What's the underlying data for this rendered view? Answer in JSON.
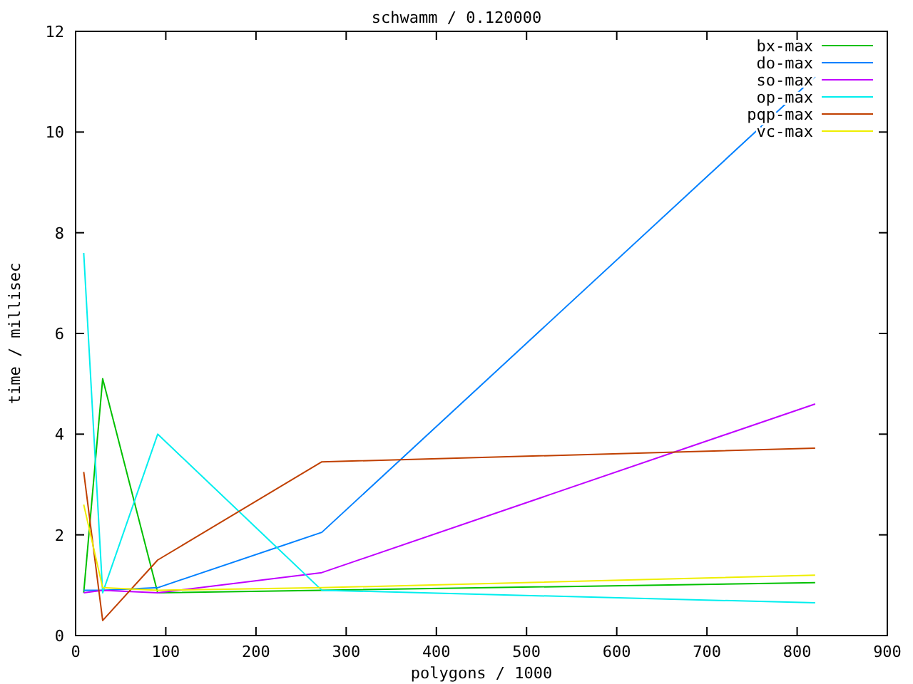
{
  "chart_data": {
    "type": "line",
    "title": "schwamm / 0.120000",
    "xlabel": "polygons / 1000",
    "ylabel": "time / millisec",
    "x": [
      9,
      30,
      91,
      273,
      820
    ],
    "series": [
      {
        "name": "bx-max",
        "color": "#00c000",
        "values": [
          0.85,
          5.1,
          0.85,
          0.9,
          1.05
        ]
      },
      {
        "name": "do-max",
        "color": "#0080ff",
        "values": [
          0.9,
          0.9,
          0.95,
          2.05,
          11.1
        ]
      },
      {
        "name": "so-max",
        "color": "#c000ff",
        "values": [
          0.85,
          0.9,
          0.85,
          1.25,
          4.6
        ]
      },
      {
        "name": "op-max",
        "color": "#00eeee",
        "values": [
          7.6,
          0.85,
          4.0,
          0.9,
          0.65
        ]
      },
      {
        "name": "pqp-max",
        "color": "#c04000",
        "values": [
          3.25,
          0.3,
          1.5,
          3.45,
          3.72
        ]
      },
      {
        "name": "vc-max",
        "color": "#eeee00",
        "values": [
          2.6,
          0.95,
          0.9,
          0.95,
          1.2
        ]
      }
    ],
    "xlim": [
      0,
      900
    ],
    "xticks": [
      0,
      100,
      200,
      300,
      400,
      500,
      600,
      700,
      800,
      900
    ],
    "ylim": [
      0,
      12
    ],
    "yticks": [
      0,
      2,
      4,
      6,
      8,
      10,
      12
    ],
    "grid": false,
    "legend": "top right",
    "marker": "none",
    "line_style": "solid"
  }
}
